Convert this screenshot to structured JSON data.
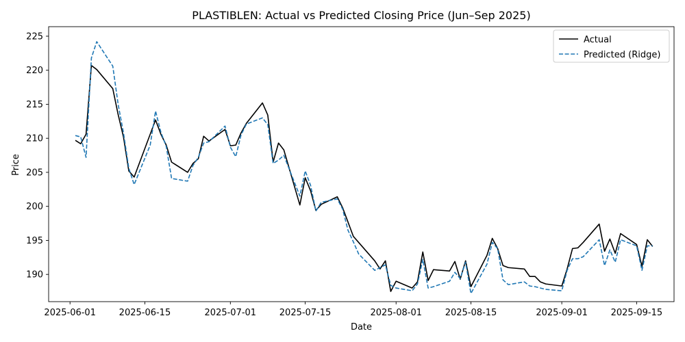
{
  "chart_data": {
    "type": "line",
    "title": "PLASTIBLEN: Actual vs Predicted Closing Price (Jun–Sep 2025)",
    "xlabel": "Date",
    "ylabel": "Price",
    "xlim": [
      "2025-05-28",
      "2025-09-22"
    ],
    "ylim": [
      186.0,
      226.4
    ],
    "x_ticks": [
      "2025-06-01",
      "2025-06-15",
      "2025-07-01",
      "2025-07-15",
      "2025-08-01",
      "2025-08-15",
      "2025-09-01",
      "2025-09-15"
    ],
    "y_ticks": [
      190,
      195,
      200,
      205,
      210,
      215,
      220,
      225
    ],
    "grid": false,
    "legend": "top-right",
    "x": [
      "2025-06-02",
      "2025-06-03",
      "2025-06-04",
      "2025-06-05",
      "2025-06-06",
      "2025-06-09",
      "2025-06-10",
      "2025-06-11",
      "2025-06-12",
      "2025-06-13",
      "2025-06-16",
      "2025-06-17",
      "2025-06-18",
      "2025-06-19",
      "2025-06-20",
      "2025-06-23",
      "2025-06-24",
      "2025-06-25",
      "2025-06-26",
      "2025-06-27",
      "2025-06-30",
      "2025-07-01",
      "2025-07-02",
      "2025-07-03",
      "2025-07-04",
      "2025-07-07",
      "2025-07-08",
      "2025-07-09",
      "2025-07-10",
      "2025-07-11",
      "2025-07-14",
      "2025-07-15",
      "2025-07-16",
      "2025-07-17",
      "2025-07-18",
      "2025-07-21",
      "2025-07-22",
      "2025-07-23",
      "2025-07-24",
      "2025-07-25",
      "2025-07-28",
      "2025-07-29",
      "2025-07-30",
      "2025-07-31",
      "2025-08-01",
      "2025-08-04",
      "2025-08-05",
      "2025-08-06",
      "2025-08-07",
      "2025-08-08",
      "2025-08-11",
      "2025-08-12",
      "2025-08-13",
      "2025-08-14",
      "2025-08-15",
      "2025-08-18",
      "2025-08-19",
      "2025-08-20",
      "2025-08-21",
      "2025-08-22",
      "2025-08-25",
      "2025-08-26",
      "2025-08-27",
      "2025-08-28",
      "2025-08-29",
      "2025-09-01",
      "2025-09-02",
      "2025-09-03",
      "2025-09-04",
      "2025-09-05",
      "2025-09-08",
      "2025-09-09",
      "2025-09-10",
      "2025-09-11",
      "2025-09-12",
      "2025-09-15",
      "2025-09-16",
      "2025-09-17",
      "2025-09-18"
    ],
    "series": [
      {
        "name": "Actual",
        "color": "#000000",
        "style": "solid",
        "values": [
          209.7,
          209.2,
          210.6,
          220.7,
          220.1,
          217.3,
          213.5,
          210.2,
          205.2,
          204.3,
          210.6,
          212.7,
          210.6,
          209.0,
          206.5,
          205.0,
          206.3,
          207.0,
          210.3,
          209.6,
          211.3,
          208.9,
          209.0,
          210.8,
          212.2,
          215.2,
          213.4,
          206.5,
          209.3,
          208.3,
          200.2,
          204.2,
          202.3,
          199.4,
          200.3,
          201.4,
          199.8,
          197.7,
          195.6,
          194.7,
          192.0,
          190.8,
          192.0,
          187.5,
          189.0,
          188.0,
          188.9,
          193.3,
          189.1,
          190.7,
          190.5,
          191.9,
          189.3,
          192.0,
          188.2,
          192.8,
          195.3,
          193.8,
          191.3,
          191.0,
          190.8,
          189.7,
          189.7,
          188.9,
          188.6,
          188.3,
          190.8,
          193.8,
          193.9,
          194.7,
          197.4,
          193.4,
          195.2,
          193.1,
          196.0,
          194.4,
          191.2,
          195.1,
          194.1
        ]
      },
      {
        "name": "Predicted (Ridge)",
        "color": "#1f77b4",
        "style": "dashed",
        "values": [
          210.4,
          210.2,
          207.2,
          221.8,
          224.2,
          220.6,
          215.0,
          210.8,
          205.6,
          203.2,
          209.0,
          214.0,
          210.9,
          208.8,
          204.1,
          203.7,
          206.0,
          207.2,
          209.3,
          209.5,
          211.8,
          208.7,
          207.3,
          210.5,
          212.1,
          213.0,
          212.0,
          206.3,
          206.8,
          207.5,
          201.5,
          205.2,
          203.1,
          199.3,
          200.6,
          201.1,
          199.6,
          196.5,
          194.8,
          193.0,
          190.6,
          191.0,
          191.4,
          188.4,
          188.0,
          187.6,
          188.6,
          192.2,
          188.0,
          188.2,
          189.0,
          190.3,
          189.4,
          191.8,
          187.2,
          191.5,
          194.7,
          193.8,
          189.2,
          188.5,
          188.9,
          188.3,
          188.2,
          188.0,
          187.8,
          187.6,
          190.6,
          192.3,
          192.3,
          192.6,
          195.1,
          191.3,
          193.6,
          191.8,
          195.1,
          194.2,
          190.6,
          194.2,
          194.2
        ]
      }
    ]
  }
}
